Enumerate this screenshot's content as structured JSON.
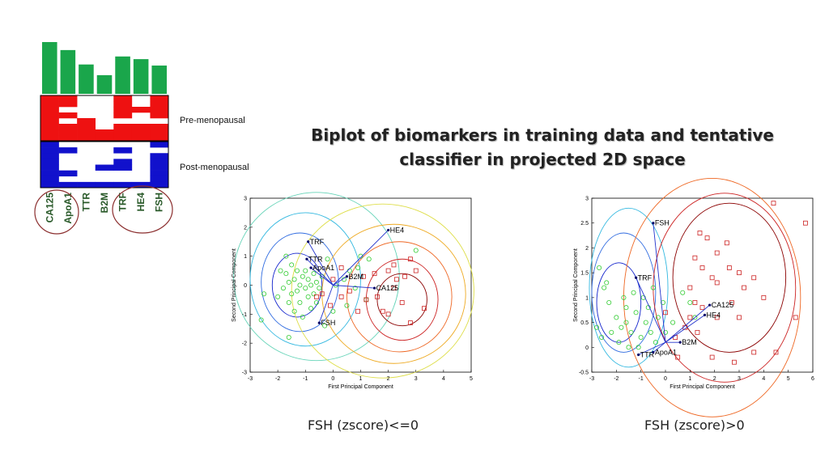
{
  "slide": {
    "title": "Biplot of biomarkers in training data and tentative classifier in projected 2D space",
    "caption_left": "FSH (zscore)<=0",
    "caption_right": "FSH (zscore)>0"
  },
  "colors": {
    "bar": "#1aa64b",
    "pre": "#ee1111",
    "post": "#1111cc",
    "biomarker_label": "#2a5a2a",
    "circle": "#8b2e2e",
    "vector": "#2233cc",
    "green_marker": "#33cc33",
    "red_marker": "#cc2222"
  },
  "chart_data": [
    {
      "type": "bar",
      "categories": [
        "CA125",
        "ApoA1",
        "TTR",
        "B2M",
        "TRF",
        "HE4",
        "FSH"
      ],
      "values": [
        0.97,
        0.82,
        0.55,
        0.35,
        0.7,
        0.65,
        0.53
      ],
      "heatmap_groups": [
        "Pre-menopausal",
        "Post-menopausal"
      ],
      "pre_matrix": [
        [
          1,
          1,
          0,
          0,
          1,
          0,
          1
        ],
        [
          1,
          1,
          0,
          0,
          1,
          0,
          1
        ],
        [
          1,
          0,
          0,
          0,
          1,
          1,
          1
        ],
        [
          1,
          1,
          0,
          0,
          1,
          0,
          1
        ],
        [
          1,
          0,
          1,
          0,
          0,
          0,
          0
        ],
        [
          1,
          1,
          1,
          0,
          1,
          1,
          1
        ],
        [
          1,
          1,
          1,
          1,
          1,
          1,
          1
        ],
        [
          1,
          1,
          1,
          1,
          1,
          1,
          1
        ]
      ],
      "post_matrix": [
        [
          1,
          0,
          0,
          0,
          0,
          0,
          1
        ],
        [
          1,
          1,
          0,
          0,
          1,
          0,
          0
        ],
        [
          1,
          0,
          0,
          0,
          0,
          0,
          1
        ],
        [
          1,
          0,
          0,
          0,
          1,
          0,
          1
        ],
        [
          1,
          0,
          0,
          1,
          1,
          0,
          1
        ],
        [
          1,
          1,
          0,
          0,
          0,
          0,
          1
        ],
        [
          1,
          0,
          0,
          0,
          0,
          0,
          1
        ],
        [
          1,
          1,
          1,
          1,
          1,
          1,
          1
        ]
      ],
      "circled_groups": [
        [
          "CA125",
          "ApoA1"
        ],
        [
          "TRF",
          "HE4",
          "FSH"
        ]
      ]
    },
    {
      "type": "scatter",
      "xlabel": "First Principal Component",
      "ylabel": "Second Principal Component",
      "xlim": [
        -3,
        5
      ],
      "ylim": [
        -3,
        3
      ],
      "xticks": [
        -3,
        -2,
        -1,
        0,
        1,
        2,
        3,
        4,
        5
      ],
      "yticks": [
        -3,
        -2,
        -1,
        0,
        1,
        2,
        3
      ],
      "vectors": [
        {
          "name": "TRF",
          "x": -0.9,
          "y": 1.5
        },
        {
          "name": "TTR",
          "x": -0.95,
          "y": 0.9
        },
        {
          "name": "ApoA1",
          "x": -0.8,
          "y": 0.6
        },
        {
          "name": "B2M",
          "x": 0.5,
          "y": 0.3
        },
        {
          "name": "CA125",
          "x": 1.5,
          "y": -0.1
        },
        {
          "name": "HE4",
          "x": 2.0,
          "y": 1.9
        },
        {
          "name": "FSH",
          "x": -0.5,
          "y": -1.3
        }
      ],
      "green_points": [
        [
          -1.9,
          0.5
        ],
        [
          -1.7,
          0.4
        ],
        [
          -1.6,
          0.1
        ],
        [
          -1.5,
          -0.3
        ],
        [
          -1.5,
          0.7
        ],
        [
          -1.4,
          0.2
        ],
        [
          -1.3,
          -0.2
        ],
        [
          -1.3,
          0.5
        ],
        [
          -1.2,
          0.0
        ],
        [
          -1.2,
          -0.6
        ],
        [
          -1.1,
          0.3
        ],
        [
          -1.0,
          -0.1
        ],
        [
          -1.0,
          0.5
        ],
        [
          -0.9,
          -0.4
        ],
        [
          -0.9,
          0.2
        ],
        [
          -0.8,
          0.0
        ],
        [
          -0.8,
          -0.8
        ],
        [
          -0.7,
          0.4
        ],
        [
          -0.7,
          -0.3
        ],
        [
          -0.6,
          0.1
        ],
        [
          -0.5,
          -0.1
        ],
        [
          -0.4,
          0.3
        ],
        [
          -1.8,
          -0.1
        ],
        [
          -1.6,
          -0.6
        ],
        [
          -1.4,
          -0.9
        ],
        [
          -1.1,
          -1.1
        ],
        [
          -0.6,
          -0.6
        ],
        [
          -1.7,
          1.0
        ],
        [
          -2.0,
          -0.4
        ],
        [
          -2.5,
          -0.3
        ],
        [
          -2.6,
          -1.2
        ],
        [
          -1.6,
          -1.8
        ],
        [
          0.1,
          0.0
        ],
        [
          0.4,
          0.2
        ],
        [
          0.6,
          0.5
        ],
        [
          0.8,
          -0.1
        ],
        [
          1.2,
          -0.5
        ],
        [
          0.9,
          0.6
        ],
        [
          1.0,
          1.0
        ],
        [
          1.3,
          0.9
        ],
        [
          0.5,
          -0.7
        ],
        [
          0.0,
          -0.9
        ],
        [
          3.0,
          1.2
        ],
        [
          -0.2,
          0.9
        ],
        [
          -0.3,
          -1.4
        ]
      ],
      "red_points": [
        [
          2.0,
          0.5
        ],
        [
          2.3,
          0.2
        ],
        [
          2.6,
          0.3
        ],
        [
          2.8,
          0.9
        ],
        [
          3.0,
          0.5
        ],
        [
          2.2,
          -0.1
        ],
        [
          1.6,
          -0.4
        ],
        [
          1.8,
          -0.9
        ],
        [
          2.0,
          -1.0
        ],
        [
          2.5,
          -0.6
        ],
        [
          1.2,
          -0.5
        ],
        [
          0.6,
          -0.2
        ],
        [
          0.3,
          -0.4
        ],
        [
          0.9,
          -0.9
        ],
        [
          1.1,
          0.3
        ],
        [
          1.5,
          0.4
        ],
        [
          3.3,
          -0.8
        ],
        [
          2.8,
          -1.3
        ],
        [
          -0.1,
          -0.7
        ],
        [
          -0.4,
          -0.3
        ],
        [
          0.0,
          0.2
        ],
        [
          0.3,
          0.6
        ],
        [
          -0.6,
          -0.4
        ],
        [
          2.2,
          0.7
        ]
      ]
    },
    {
      "type": "scatter",
      "xlabel": "First Principal Component",
      "ylabel": "Second Principal Component",
      "xlim": [
        -3,
        6
      ],
      "ylim": [
        -0.5,
        3
      ],
      "xticks": [
        -3,
        -2,
        -1,
        0,
        1,
        2,
        3,
        4,
        5,
        6
      ],
      "yticks": [
        -0.5,
        0,
        0.5,
        1,
        1.5,
        2,
        2.5,
        3
      ],
      "vectors": [
        {
          "name": "FSH",
          "x": -0.5,
          "y": 2.5
        },
        {
          "name": "TRF",
          "x": -1.2,
          "y": 1.4
        },
        {
          "name": "B2M",
          "x": 0.6,
          "y": 0.1
        },
        {
          "name": "CA125",
          "x": 1.8,
          "y": 0.85
        },
        {
          "name": "HE4",
          "x": 1.6,
          "y": 0.65
        },
        {
          "name": "TTR",
          "x": -1.1,
          "y": -0.15
        },
        {
          "name": "ApoA1",
          "x": -0.5,
          "y": -0.1
        }
      ],
      "green_points": [
        [
          -2.7,
          1.6
        ],
        [
          -2.5,
          1.2
        ],
        [
          -2.3,
          0.9
        ],
        [
          -2.0,
          0.6
        ],
        [
          -1.8,
          0.4
        ],
        [
          -1.6,
          0.8
        ],
        [
          -1.4,
          0.3
        ],
        [
          -1.2,
          0.7
        ],
        [
          -1.0,
          0.2
        ],
        [
          -0.8,
          0.5
        ],
        [
          -0.6,
          0.3
        ],
        [
          -0.4,
          0.1
        ],
        [
          -2.2,
          0.3
        ],
        [
          -1.9,
          0.1
        ],
        [
          -1.5,
          0.0
        ],
        [
          -1.1,
          0.0
        ],
        [
          -0.7,
          0.8
        ],
        [
          -0.3,
          0.6
        ],
        [
          0.0,
          0.3
        ],
        [
          -2.6,
          0.2
        ],
        [
          -1.3,
          1.1
        ],
        [
          -0.9,
          1.0
        ],
        [
          -0.5,
          1.2
        ],
        [
          -0.1,
          0.9
        ],
        [
          -1.7,
          1.0
        ],
        [
          -2.4,
          1.3
        ],
        [
          0.3,
          0.5
        ],
        [
          0.7,
          1.1
        ],
        [
          1.0,
          0.9
        ],
        [
          1.2,
          0.6
        ],
        [
          -2.8,
          0.4
        ],
        [
          -1.6,
          0.5
        ]
      ],
      "red_points": [
        [
          4.4,
          2.9
        ],
        [
          5.7,
          2.5
        ],
        [
          1.4,
          2.3
        ],
        [
          1.7,
          2.2
        ],
        [
          2.1,
          1.9
        ],
        [
          2.5,
          2.1
        ],
        [
          1.2,
          1.8
        ],
        [
          1.5,
          1.6
        ],
        [
          2.6,
          1.6
        ],
        [
          3.0,
          1.5
        ],
        [
          3.6,
          1.4
        ],
        [
          2.1,
          1.3
        ],
        [
          1.0,
          1.2
        ],
        [
          1.9,
          1.4
        ],
        [
          3.2,
          1.2
        ],
        [
          4.0,
          1.0
        ],
        [
          2.7,
          0.9
        ],
        [
          1.2,
          0.9
        ],
        [
          1.5,
          0.8
        ],
        [
          1.0,
          0.6
        ],
        [
          0.8,
          0.4
        ],
        [
          1.3,
          0.3
        ],
        [
          2.1,
          0.6
        ],
        [
          3.0,
          0.6
        ],
        [
          5.3,
          0.6
        ],
        [
          0.4,
          0.2
        ],
        [
          0.0,
          0.7
        ],
        [
          1.9,
          -0.2
        ],
        [
          2.8,
          -0.3
        ],
        [
          3.6,
          -0.1
        ],
        [
          4.5,
          -0.1
        ],
        [
          0.5,
          -0.2
        ]
      ]
    }
  ]
}
